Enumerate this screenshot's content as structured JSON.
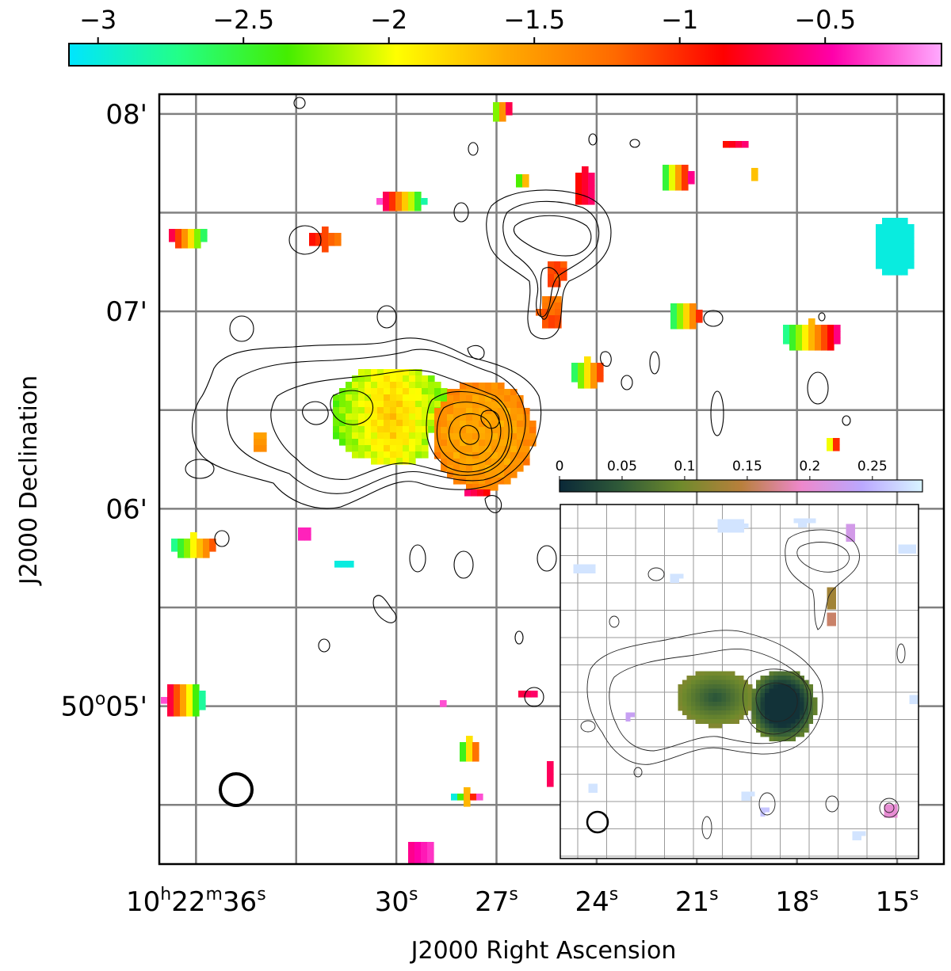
{
  "chart_data": {
    "type": "heatmap",
    "title": "",
    "xlabel": "J2000 Right Ascension",
    "ylabel": "J2000 Declination",
    "colorbar": {
      "ticks": [
        "−3",
        "−2.5",
        "−2",
        "−1.5",
        "−1",
        "−0.5"
      ],
      "tick_values": [
        -3,
        -2.5,
        -2,
        -1.5,
        -1,
        -0.5
      ],
      "range": [
        -3.1,
        -0.1
      ],
      "colors": [
        "#00e5ff",
        "#22ff88",
        "#44ee00",
        "#ffff00",
        "#ffaa00",
        "#ff6a00",
        "#ff0000",
        "#ff00aa",
        "#ffaaff"
      ]
    },
    "xaxis": {
      "ticks": [
        {
          "h": "10",
          "m": "22",
          "s": "36",
          "label": "10h22m36s"
        },
        {
          "s": "30",
          "label": "30s"
        },
        {
          "s": "27",
          "label": "27s"
        },
        {
          "s": "24",
          "label": "24s"
        },
        {
          "s": "21",
          "label": "21s"
        },
        {
          "s": "18",
          "label": "18s"
        },
        {
          "s": "15",
          "label": "15s"
        }
      ],
      "ra_seconds_range": [
        37.1,
        13.6
      ],
      "tick_seconds": [
        36,
        30,
        27,
        24,
        21,
        18,
        15
      ],
      "grid_seconds": [
        36,
        33,
        30,
        27,
        24,
        21,
        18,
        15
      ]
    },
    "yaxis": {
      "ticks": [
        {
          "label": "08'",
          "deg": "",
          "min": "08"
        },
        {
          "label": "07'",
          "deg": "",
          "min": "07"
        },
        {
          "label": "06'",
          "deg": "",
          "min": "06"
        },
        {
          "label": "50°05'",
          "deg": "50",
          "min": "05"
        }
      ],
      "dec_arcmin_range": [
        4.2,
        8.1
      ],
      "tick_arcmin": [
        8,
        7,
        6,
        5
      ],
      "grid_arcmin": [
        8,
        7.5,
        7,
        6.5,
        6,
        5.5,
        5,
        4.5
      ]
    },
    "inset": {
      "type": "heatmap",
      "colorbar": {
        "ticks": [
          "0",
          "0.05",
          "0.1",
          "0.15",
          "0.2",
          "0.25"
        ],
        "tick_values": [
          0,
          0.05,
          0.1,
          0.15,
          0.2,
          0.25
        ],
        "range": [
          0,
          0.29
        ],
        "colors": [
          "#0a2838",
          "#2f5a38",
          "#6f8a2c",
          "#b8803c",
          "#ee88cc",
          "#bba8ff",
          "#d8f4ff"
        ]
      }
    },
    "beam": {
      "shape": "circle"
    },
    "series": [
      {
        "name": "spectral-index pixels",
        "encoding": "color"
      },
      {
        "name": "radio contours",
        "encoding": "black contour lines"
      }
    ]
  }
}
